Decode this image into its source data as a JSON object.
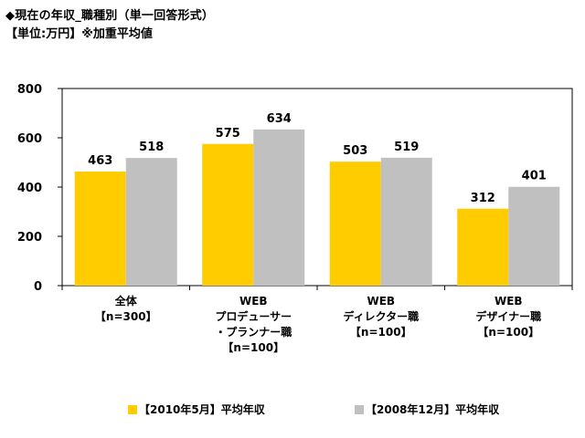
{
  "header": {
    "title": "◆現在の年収_職種別（単一回答形式）",
    "subtitle": "【単位:万円】※加重平均値"
  },
  "chart_data": {
    "type": "bar",
    "categories": [
      [
        "全体",
        "【n=300】"
      ],
      [
        "WEB",
        "プロデューサー",
        "・プランナー職",
        "【n=100】"
      ],
      [
        "WEB",
        "ディレクター職",
        "【n=100】"
      ],
      [
        "WEB",
        "デザイナー職",
        "【n=100】"
      ]
    ],
    "series": [
      {
        "name": "【2010年5月】平均年収",
        "values": [
          463,
          575,
          503,
          312
        ],
        "color": "#FFCC00"
      },
      {
        "name": "【2008年12月】平均年収",
        "values": [
          518,
          634,
          519,
          401
        ],
        "color": "#C0C0C0"
      }
    ],
    "ylim": [
      0,
      800
    ],
    "yticks": [
      "0",
      "200",
      "400",
      "600",
      "800"
    ],
    "grid": false,
    "legend_position": "bottom"
  }
}
